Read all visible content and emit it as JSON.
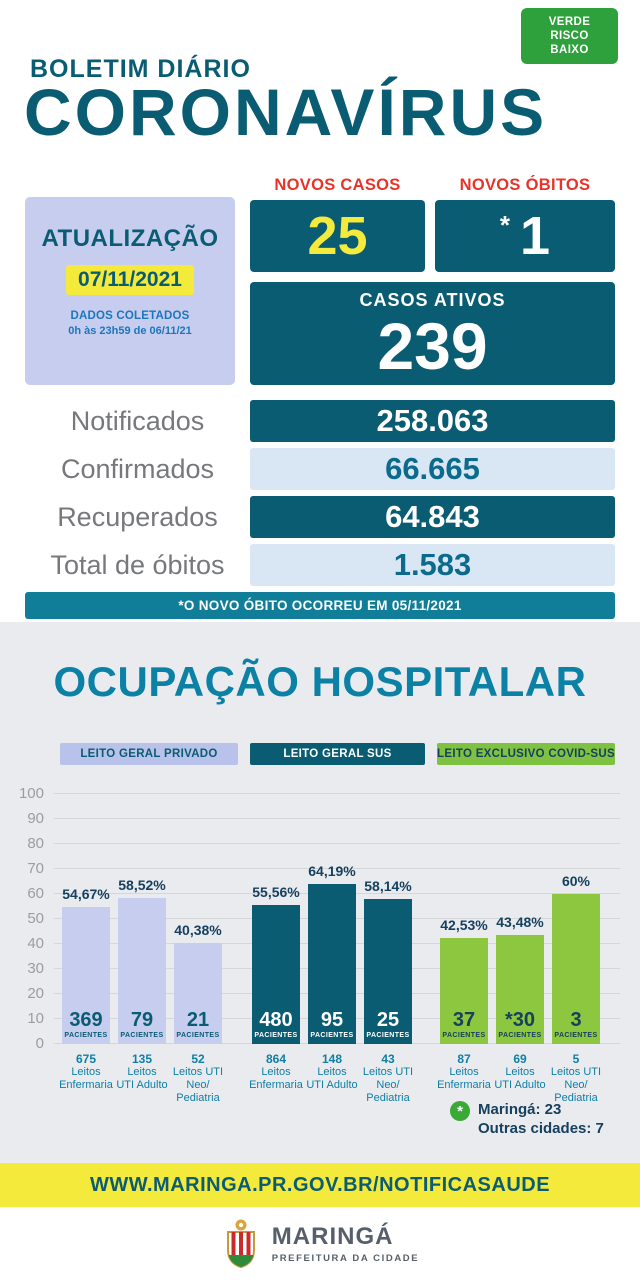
{
  "badge": {
    "lines": [
      "VERDE",
      "RISCO",
      "BAIXO"
    ]
  },
  "header": {
    "kicker": "BOLETIM DIÁRIO",
    "title": "CORONAVÍRUS"
  },
  "update": {
    "title": "ATUALIZAÇÃO",
    "date": "07/11/2021",
    "collected_label": "DADOS COLETADOS",
    "collected_period": "0h às 23h59 de 06/11/21"
  },
  "stats": {
    "novos_casos": {
      "label": "NOVOS CASOS",
      "value": "25"
    },
    "novos_obitos": {
      "label": "NOVOS ÓBITOS",
      "asterisk": "*",
      "value": "1"
    },
    "casos_ativos": {
      "label": "CASOS ATIVOS",
      "value": "239"
    },
    "rows": [
      {
        "label": "Notificados",
        "value": "258.063",
        "style": "dark"
      },
      {
        "label": "Confirmados",
        "value": "66.665",
        "style": "light"
      },
      {
        "label": "Recuperados",
        "value": "64.843",
        "style": "dark"
      },
      {
        "label": "Total de óbitos",
        "value": "1.583",
        "style": "light"
      }
    ],
    "note": "*O NOVO ÓBITO OCORREU EM 05/11/2021"
  },
  "chart_data": {
    "type": "bar",
    "title": "OCUPAÇÃO HOSPITALAR",
    "ylabel": "",
    "ylim": [
      0,
      100
    ],
    "yticks": [
      0,
      10,
      20,
      30,
      40,
      50,
      60,
      70,
      80,
      90,
      100
    ],
    "grid": true,
    "patients_label": "PACIENTES",
    "groups": [
      {
        "name": "LEITO GERAL PRIVADO",
        "header_bg": "#b9c2ea",
        "header_fg": "#0a5c73",
        "bar_bg": "#c6cdee",
        "bar_fg": "#0a5c73",
        "bars": [
          {
            "percent": 54.67,
            "percent_label": "54,67%",
            "patients": "369",
            "beds": "675",
            "bed_lines": [
              "Leitos",
              "Enfermaria"
            ]
          },
          {
            "percent": 58.52,
            "percent_label": "58,52%",
            "patients": "79",
            "beds": "135",
            "bed_lines": [
              "Leitos",
              "UTI Adulto"
            ]
          },
          {
            "percent": 40.38,
            "percent_label": "40,38%",
            "patients": "21",
            "beds": "52",
            "bed_lines": [
              "Leitos UTI",
              "Neo/",
              "Pediatria"
            ]
          }
        ]
      },
      {
        "name": "LEITO GERAL SUS",
        "header_bg": "#0a5c73",
        "header_fg": "#ffffff",
        "bar_bg": "#0a5c73",
        "bar_fg": "#ffffff",
        "bars": [
          {
            "percent": 55.56,
            "percent_label": "55,56%",
            "patients": "480",
            "beds": "864",
            "bed_lines": [
              "Leitos",
              "Enfermaria"
            ]
          },
          {
            "percent": 64.19,
            "percent_label": "64,19%",
            "patients": "95",
            "beds": "148",
            "bed_lines": [
              "Leitos",
              "UTI Adulto"
            ]
          },
          {
            "percent": 58.14,
            "percent_label": "58,14%",
            "patients": "25",
            "beds": "43",
            "bed_lines": [
              "Leitos UTI",
              "Neo/",
              "Pediatria"
            ]
          }
        ]
      },
      {
        "name": "LEITO EXCLUSIVO COVID-SUS",
        "header_bg": "#7fc241",
        "header_fg": "#16405e",
        "bar_bg": "#8dc63f",
        "bar_fg": "#16405e",
        "bars": [
          {
            "percent": 42.53,
            "percent_label": "42,53%",
            "patients": "37",
            "beds": "87",
            "bed_lines": [
              "Leitos",
              "Enfermaria"
            ]
          },
          {
            "percent": 43.48,
            "percent_label": "43,48%",
            "patients": "*30",
            "beds": "69",
            "bed_lines": [
              "Leitos",
              "UTI Adulto"
            ]
          },
          {
            "percent": 60,
            "percent_label": "60%",
            "patients": "3",
            "beds": "5",
            "bed_lines": [
              "Leitos UTI",
              "Neo/",
              "Pediatria"
            ]
          }
        ]
      }
    ],
    "footnote": {
      "marker": "*",
      "lines": [
        "Maringá: 23",
        "Outras cidades: 7"
      ]
    }
  },
  "footer": {
    "url": "WWW.MARINGA.PR.GOV.BR/NOTIFICASAUDE",
    "city": "MARINGÁ",
    "subtitle": "PREFEITURA DA CIDADE"
  },
  "colors": {
    "dark_teal": "#0a5c73",
    "medium_teal": "#0c81a6",
    "yellow": "#f3ea3c",
    "red_label": "#e8332a",
    "badge_green": "#2ea13c",
    "bar_green": "#8dc63f",
    "lavender": "#c6cdee",
    "light_blue_row": "#d9e7f5",
    "gray_text": "#77787b",
    "note_banner_teal": "#117e99"
  }
}
